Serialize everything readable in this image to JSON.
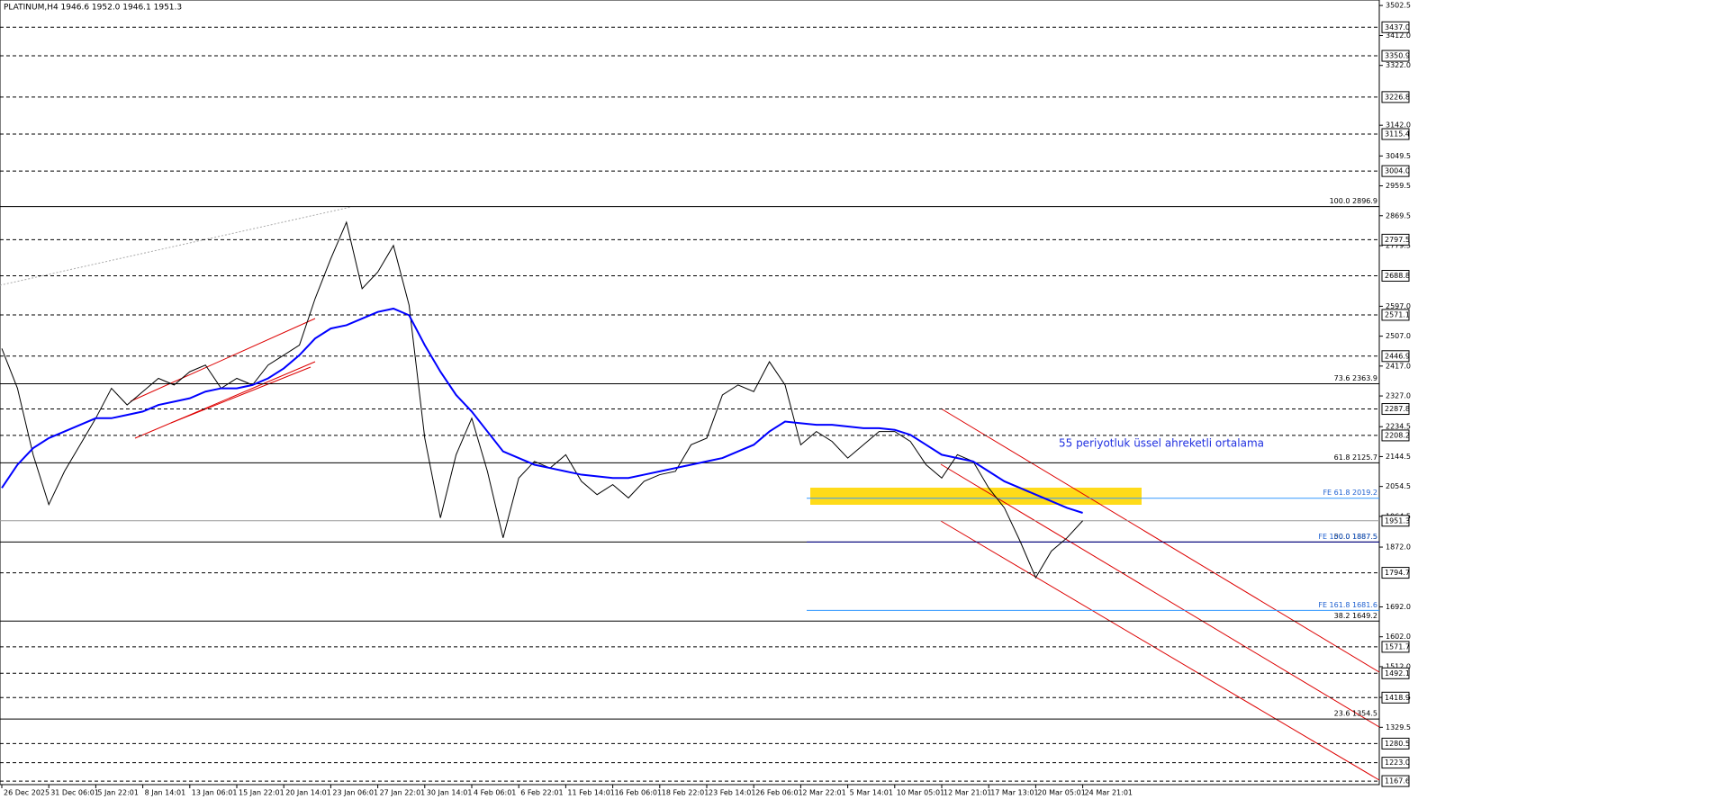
{
  "chart_data": {
    "type": "line",
    "title": "PLATINUM,H4  1946.6 1952.0 1946.1 1951.3",
    "categories": [
      "26 Dec 2025",
      null,
      null,
      "31 Dec 06:01",
      null,
      null,
      "5 Jan 22:01",
      null,
      null,
      "8 Jan 14:01",
      null,
      null,
      "13 Jan 06:01",
      null,
      null,
      "15 Jan 22:01",
      null,
      null,
      "20 Jan 14:01",
      null,
      null,
      "23 Jan 06:01",
      null,
      null,
      "27 Jan 22:01",
      null,
      null,
      "30 Jan 14:01",
      null,
      null,
      "4 Feb 06:01",
      null,
      null,
      "6 Feb 22:01",
      null,
      null,
      "11 Feb 14:01",
      null,
      null,
      "16 Feb 06:01",
      null,
      null,
      "18 Feb 22:01",
      null,
      null,
      "23 Feb 14:01",
      null,
      null,
      "26 Feb 06:01",
      null,
      null,
      "2 Mar 22:01",
      null,
      null,
      "5 Mar 14:01",
      null,
      null,
      "10 Mar 05:01",
      null,
      null,
      "12 Mar 21:01",
      null,
      null,
      "17 Mar 13:01",
      null,
      null,
      "20 Mar 05:01",
      null,
      null,
      "24 Mar 21:01",
      null,
      null,
      null,
      null,
      null,
      null,
      null,
      null,
      null,
      null,
      null,
      null,
      null,
      null,
      null,
      null,
      null,
      null
    ],
    "series": [
      {
        "color": "#000000",
        "values": [
          2470,
          2350,
          2150,
          2000,
          2100,
          2180,
          2260,
          2350,
          2300,
          2340,
          2380,
          2360,
          2400,
          2420,
          2350,
          2380,
          2360,
          2420,
          2450,
          2480,
          2620,
          2740,
          2850,
          2650,
          2700,
          2780,
          2600,
          2200,
          1960,
          2150,
          2260,
          2100,
          1900,
          2080,
          2130,
          2110,
          2150,
          2070,
          2030,
          2060,
          2020,
          2070,
          2090,
          2100,
          2180,
          2200,
          2330,
          2360,
          2340,
          2430,
          2360,
          2180,
          2220,
          2190,
          2140,
          2180,
          2220,
          2220,
          2190,
          2120,
          2080,
          2150,
          2130,
          2050,
          1990,
          1890,
          1780,
          1860,
          1900,
          1951.3,
          null,
          null,
          null,
          null,
          null,
          null,
          null,
          null,
          null,
          null,
          null,
          null,
          null,
          null,
          null,
          null,
          null,
          null
        ]
      },
      {
        "name": "55 periyotluk üssel ahreketli ortalama",
        "color": "#0000ff",
        "values": [
          2050,
          2120,
          2170,
          2200,
          2220,
          2240,
          2260,
          2260,
          2270,
          2280,
          2300,
          2310,
          2320,
          2340,
          2350,
          2350,
          2360,
          2380,
          2410,
          2450,
          2500,
          2530,
          2540,
          2560,
          2580,
          2590,
          2570,
          2480,
          2400,
          2330,
          2280,
          2220,
          2160,
          2140,
          2120,
          2110,
          2100,
          2090,
          2085,
          2080,
          2080,
          2090,
          2100,
          2110,
          2120,
          2130,
          2140,
          2160,
          2180,
          2220,
          2250,
          2245,
          2240,
          2240,
          2235,
          2230,
          2230,
          2225,
          2210,
          2180,
          2150,
          2140,
          2130,
          2100,
          2070,
          2050,
          2030,
          2010,
          1990,
          1975,
          null,
          null,
          null,
          null,
          null,
          null,
          null,
          null,
          null,
          null,
          null,
          null,
          null,
          null,
          null,
          null,
          null,
          null
        ]
      }
    ],
    "ylim": [
      1157,
      3519
    ],
    "yticks": [
      3502.5,
      {
        "value": 3412,
        "label": "3412.0"
      },
      {
        "value": 3322,
        "label": "3322.0"
      },
      {
        "value": 3142,
        "label": "3142.0"
      },
      3049.5,
      2959.5,
      2869.5,
      2779.5,
      {
        "value": 2597,
        "label": "2597.0"
      },
      {
        "value": 2507,
        "label": "2507.0"
      },
      {
        "value": 2417,
        "label": "2417.0"
      },
      {
        "value": 2327,
        "label": "2327.0"
      },
      2234.5,
      2144.5,
      2054.5,
      1964.5,
      {
        "value": 1872,
        "label": "1872.0"
      },
      {
        "value": 1692,
        "label": "1692.0"
      },
      {
        "value": 1602,
        "label": "1602.0"
      },
      {
        "value": 1512,
        "label": "1512.0"
      },
      1419.5,
      1329.5
    ],
    "levels": [
      {
        "value": 3437,
        "label": "3437.0"
      },
      3350.9,
      3226.8,
      3115.4,
      {
        "value": 3004,
        "label": "3004.0"
      },
      2797.5,
      2688.8,
      2571.1,
      2446.9,
      2287.8,
      2208.2,
      1794.7,
      1571.7,
      1492.1,
      1418.9,
      1280.5,
      {
        "value": 1223,
        "label": "1223.0"
      },
      1167.6
    ],
    "current_price": 1951.3,
    "fibonacci": [
      {
        "value": 2896.9,
        "label": "100.0 2896.9"
      },
      {
        "value": 2363.9,
        "label": "73.6 2363.9"
      },
      {
        "value": 2125.7,
        "label": "61.8 2125.7"
      },
      {
        "value": 1887.5,
        "label": "50.0 1887.5"
      },
      {
        "value": 1649.2,
        "label": "38.2 1649.2"
      },
      {
        "value": 1354.5,
        "label": "23.6 1354.5"
      }
    ],
    "expansion": [
      {
        "value": 2019.2,
        "label": "FE 61.8 2019.2"
      },
      {
        "value": 1887.5,
        "label": "FE 100.0 1887.5"
      },
      {
        "value": 1681.6,
        "label": "FE 161.8 1681.6"
      }
    ]
  }
}
